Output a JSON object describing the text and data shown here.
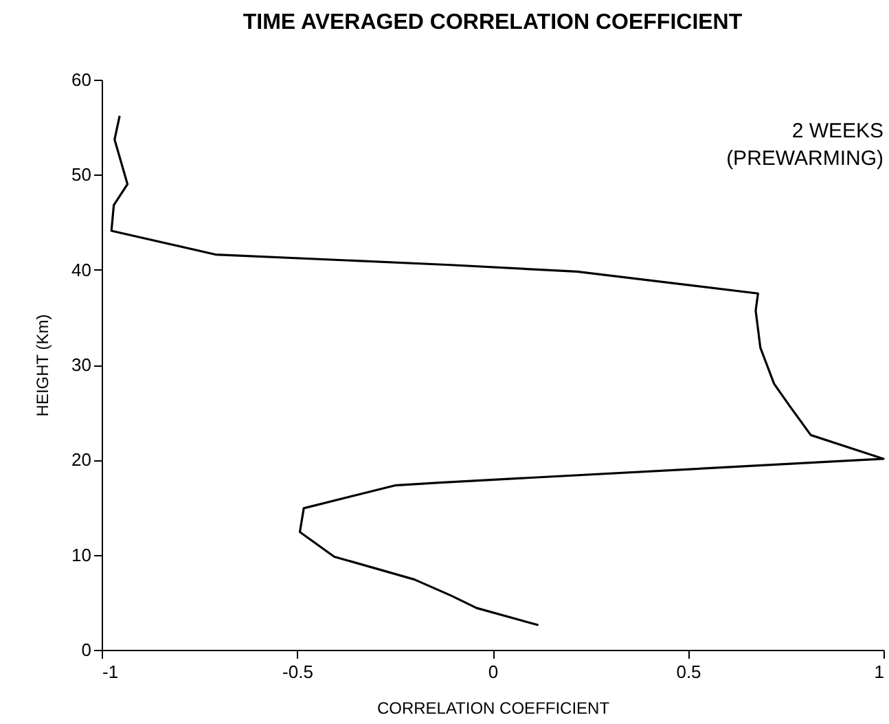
{
  "chart_data": {
    "type": "line",
    "title": "TIME AVERAGED CORRELATION COEFFICIENT",
    "xlabel": "CORRELATION COEFFICIENT",
    "ylabel": "HEIGHT (Km)",
    "annotations": [
      "2 WEEKS\n(PREWARMING)"
    ],
    "xlim": [
      -1,
      1
    ],
    "xticks": [
      -1,
      -0.5,
      0,
      0.5,
      1
    ],
    "ylim": [
      0,
      60
    ],
    "yticks": [
      0,
      10,
      20,
      30,
      40,
      50,
      60
    ],
    "grid": false,
    "series": [
      {
        "color": "#000000",
        "x": [
          -0.954,
          -0.967,
          -0.934,
          -0.969,
          -0.975,
          -0.709,
          -0.106,
          0.216,
          0.679,
          0.673,
          0.685,
          0.72,
          0.761,
          0.814,
          1.0,
          -0.135,
          -0.25,
          -0.483,
          -0.493,
          -0.405,
          -0.2,
          -0.106,
          -0.041,
          0.117
        ],
        "values": [
          56.2,
          53.7,
          49.0,
          46.8,
          44.1,
          41.6,
          40.5,
          39.8,
          37.5,
          35.7,
          31.8,
          28.0,
          25.6,
          22.6,
          20.1,
          17.6,
          17.3,
          14.9,
          12.4,
          9.8,
          7.4,
          5.7,
          4.4,
          2.6
        ]
      }
    ]
  }
}
